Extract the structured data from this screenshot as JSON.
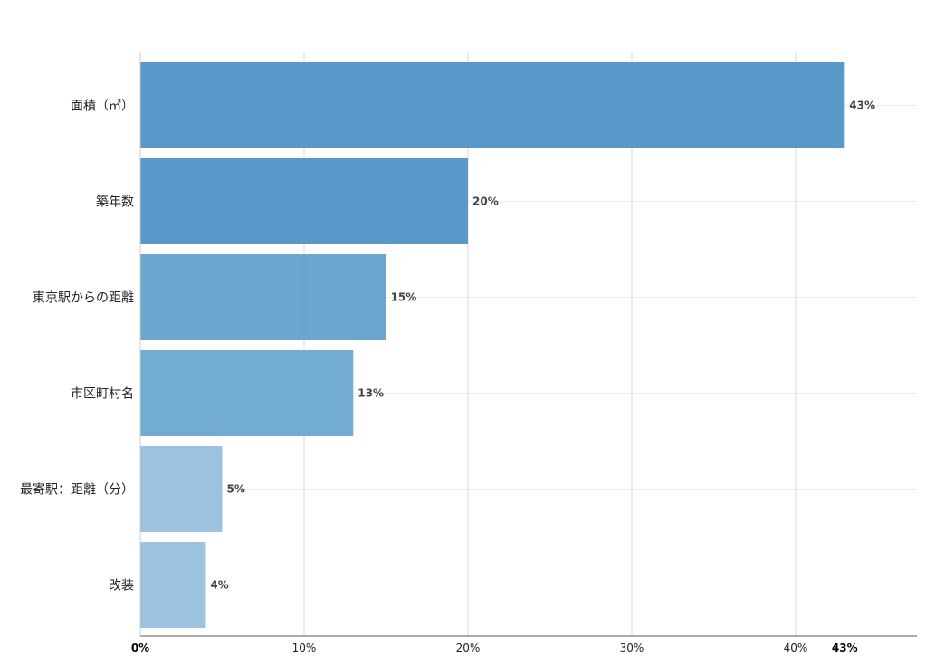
{
  "chart_data": {
    "type": "bar",
    "orientation": "horizontal",
    "title": "",
    "xlabel": "",
    "ylabel": "",
    "categories": [
      "面積（㎡）",
      "築年数",
      "東京駅からの距離",
      "市区町村名",
      "最寄駅：距離（分）",
      "改装"
    ],
    "values": [
      43,
      20,
      15,
      13,
      5,
      4
    ],
    "value_labels": [
      "43%",
      "20%",
      "15%",
      "13%",
      "5%",
      "4%"
    ],
    "bar_colors": [
      "#4a90c4",
      "#4a90c4",
      "#5f9dca",
      "#66a5cf",
      "#92bddc",
      "#92bddc"
    ],
    "xlim": [
      0,
      45
    ],
    "xticks": [
      0,
      10,
      20,
      30,
      40,
      43
    ],
    "xtick_labels": [
      "0%",
      "10%",
      "20%",
      "30%",
      "40%",
      "43%"
    ],
    "bold_ticks": [
      0,
      43
    ],
    "grid": true,
    "legend": "none"
  }
}
